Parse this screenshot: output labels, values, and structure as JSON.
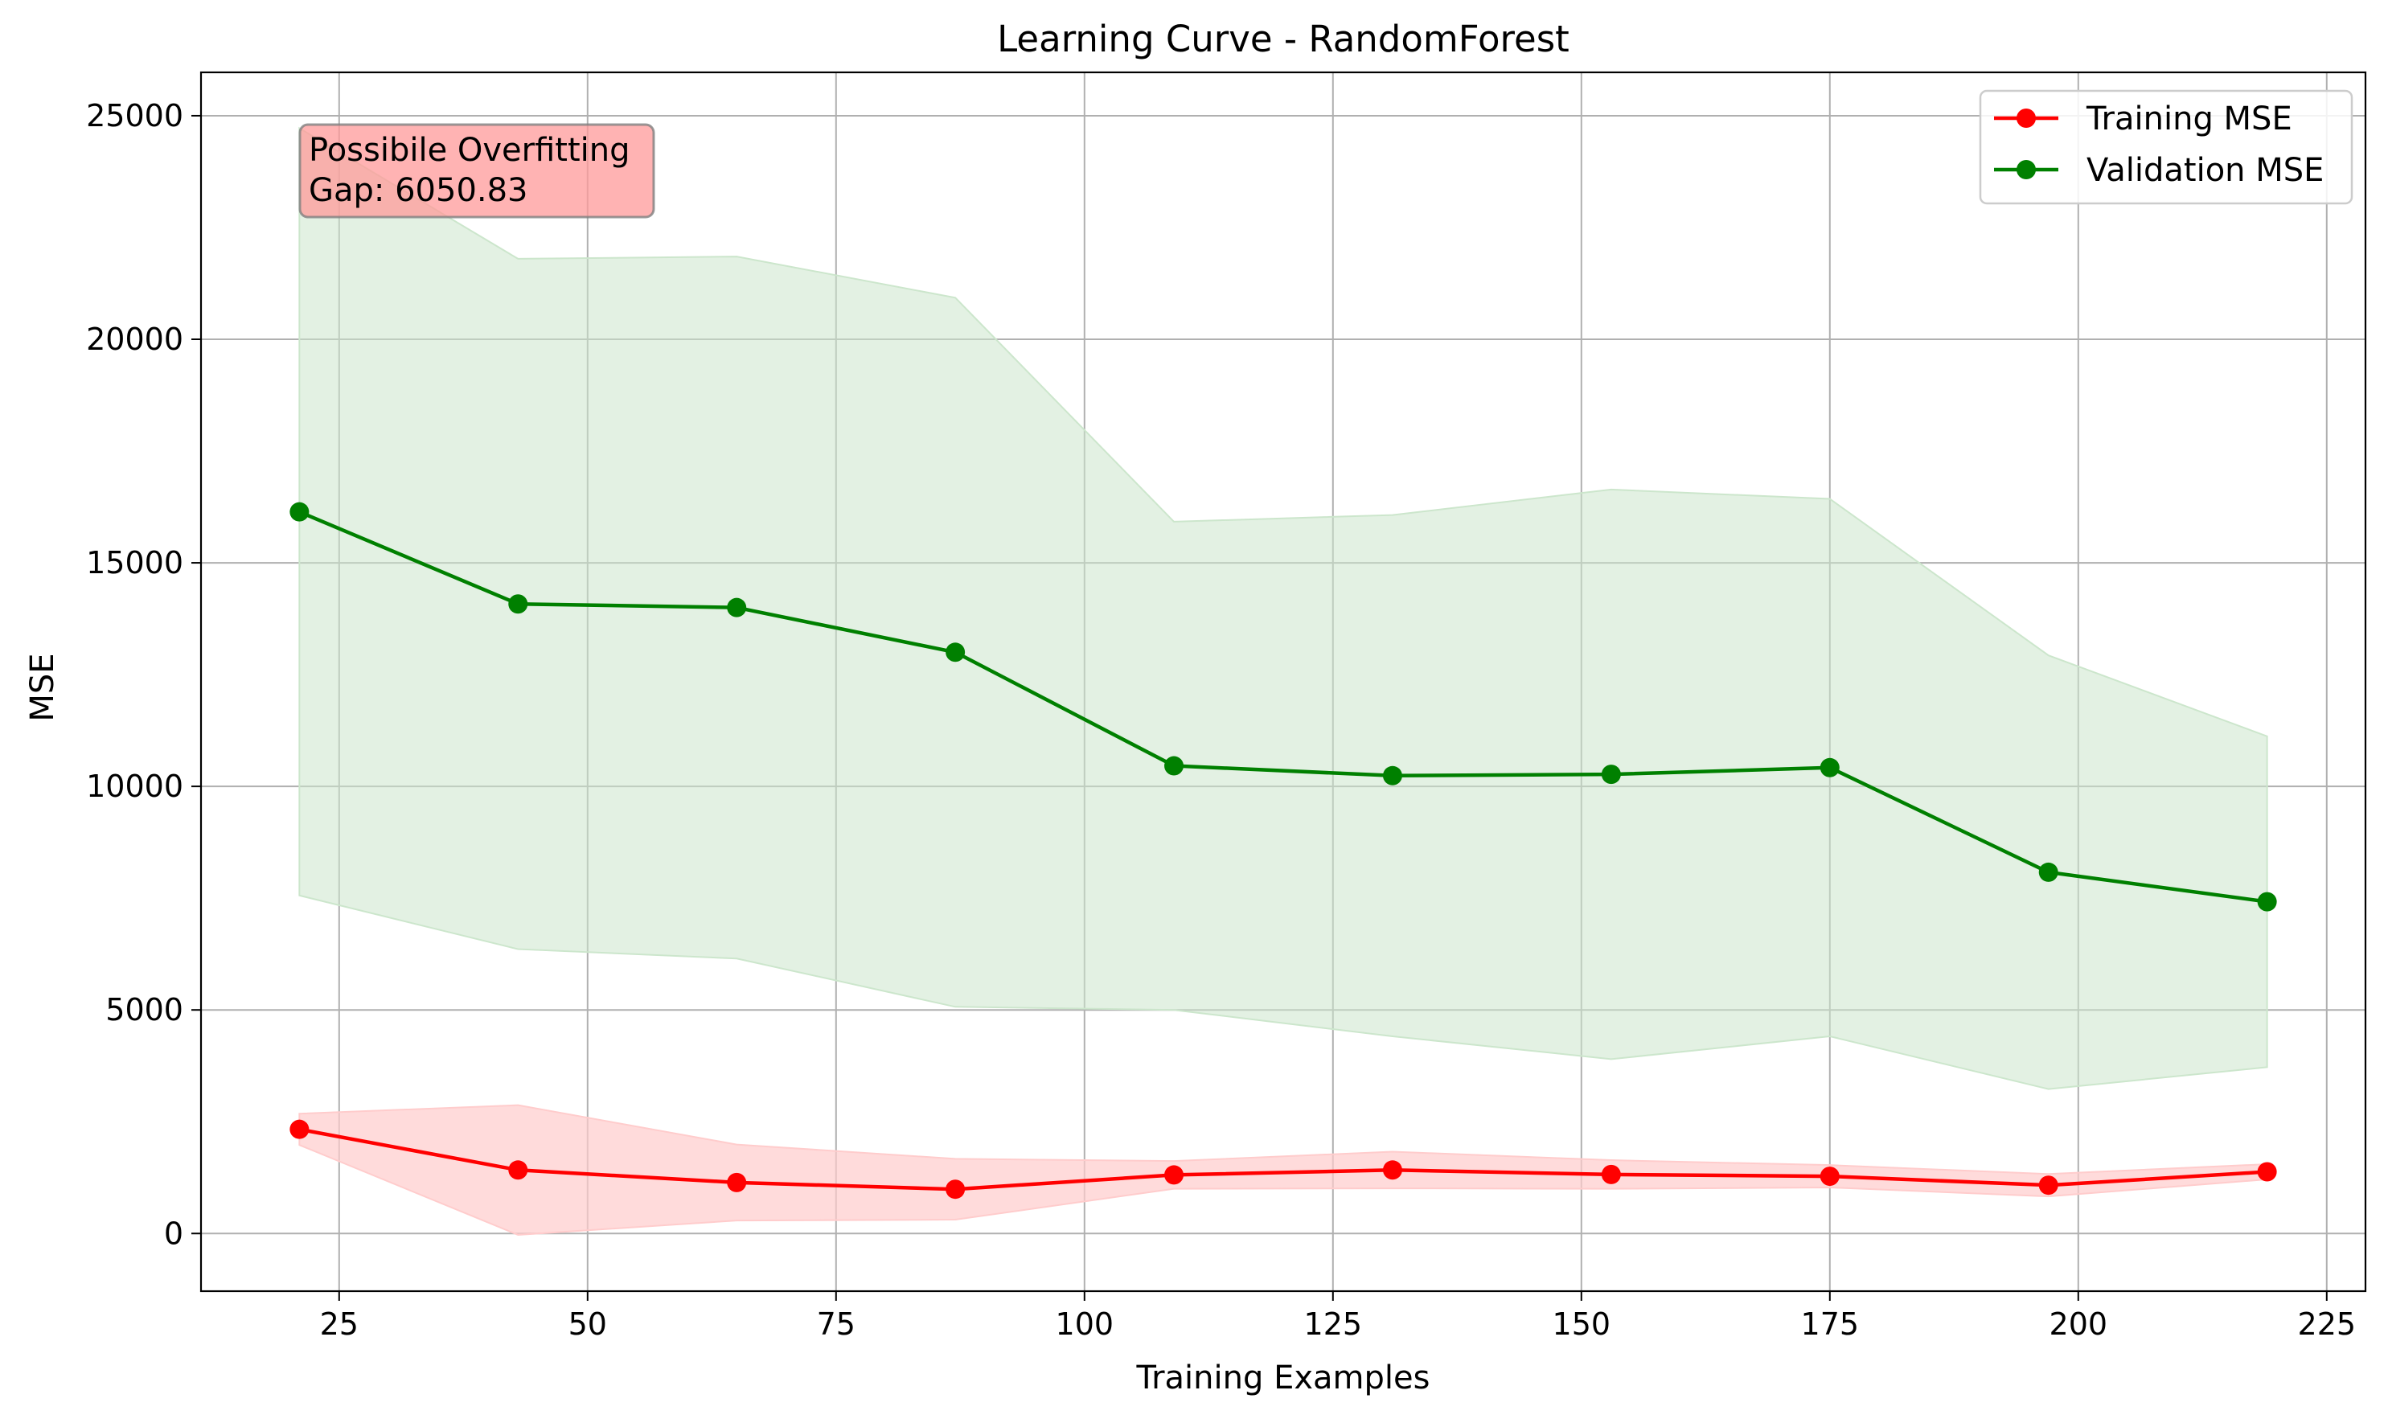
{
  "chart_data": {
    "type": "line",
    "title": "Learning Curve - RandomForest",
    "xlabel": "Training Examples",
    "ylabel": "MSE",
    "xlim": [
      11.1,
      228.9
    ],
    "ylim": [
      -1290,
      25970
    ],
    "xticks": [
      25,
      50,
      75,
      100,
      125,
      150,
      175,
      200,
      225
    ],
    "yticks": [
      0,
      5000,
      10000,
      15000,
      20000,
      25000
    ],
    "grid": true,
    "legend_position": "top-right",
    "x": [
      21,
      43,
      65,
      87,
      109,
      131,
      153,
      175,
      197,
      219
    ],
    "series": [
      {
        "name": "Training MSE",
        "color": "#ff0000",
        "band_color": "#ffcccc",
        "values": [
          2330,
          1420,
          1140,
          990,
          1310,
          1420,
          1320,
          1280,
          1080,
          1380
        ],
        "band_upper": [
          2680,
          2870,
          1990,
          1670,
          1620,
          1830,
          1640,
          1530,
          1330,
          1550
        ],
        "band_lower": [
          1980,
          -30,
          290,
          310,
          1000,
          1010,
          1000,
          1030,
          830,
          1210
        ]
      },
      {
        "name": "Validation MSE",
        "color": "#008000",
        "band_color": "#cce6cc",
        "values": [
          16140,
          14080,
          14000,
          13000,
          10460,
          10240,
          10270,
          10420,
          8080,
          7420
        ],
        "band_upper": [
          24720,
          21800,
          21850,
          20930,
          15920,
          16070,
          16640,
          16430,
          12930,
          11120
        ],
        "band_lower": [
          7560,
          6360,
          6150,
          5070,
          5000,
          4410,
          3900,
          4410,
          3230,
          3720
        ]
      }
    ],
    "annotation": {
      "lines": [
        "Possibile Overfitting",
        "Gap: 6050.83"
      ],
      "box_color": "#ff9999"
    }
  }
}
